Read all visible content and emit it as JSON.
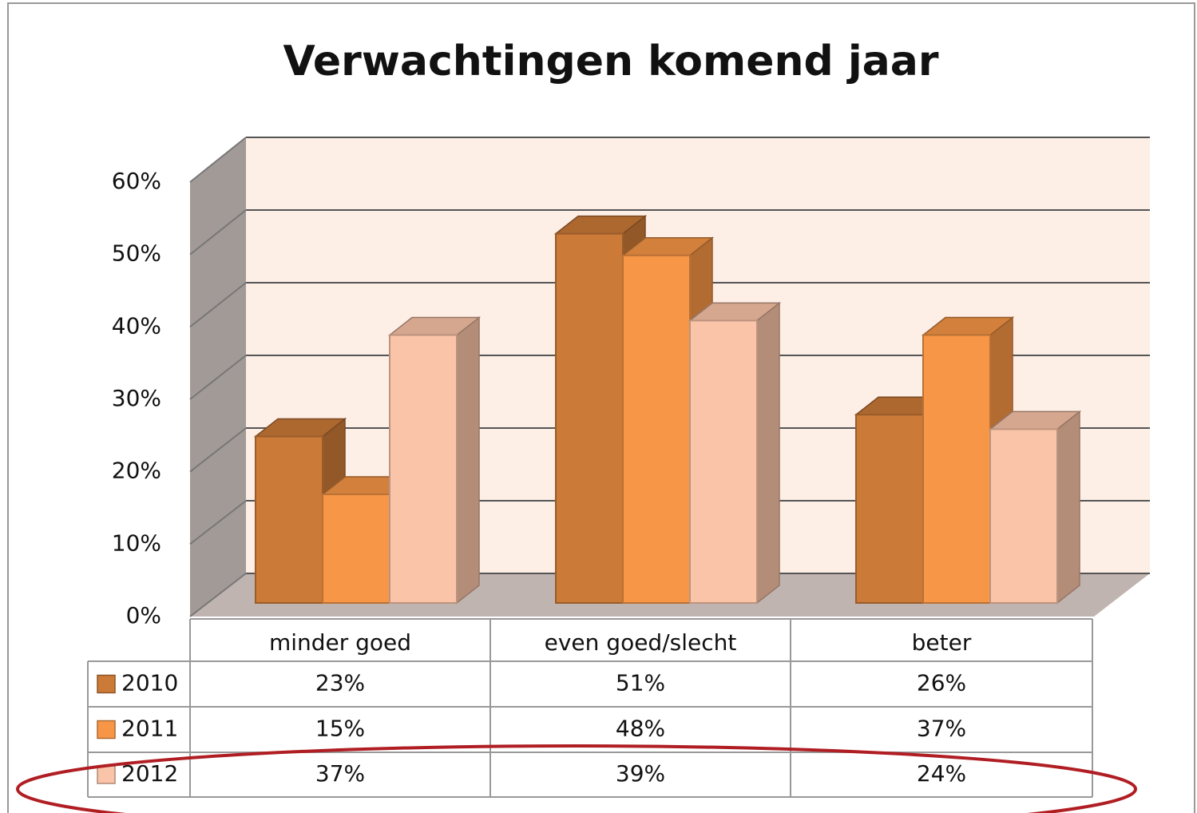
{
  "chart_data": {
    "type": "bar3d",
    "title": "Verwachtingen komend jaar",
    "categories": [
      "minder goed",
      "even goed/slecht",
      "beter"
    ],
    "series": [
      {
        "name": "2010",
        "color": "#cc7a38",
        "values": [
          23,
          51,
          26
        ],
        "value_labels": [
          "23%",
          "51%",
          "26%"
        ]
      },
      {
        "name": "2011",
        "color": "#f79646",
        "values": [
          15,
          48,
          37
        ],
        "value_labels": [
          "15%",
          "48%",
          "37%"
        ]
      },
      {
        "name": "2012",
        "color": "#fac4a8",
        "values": [
          37,
          39,
          24
        ],
        "value_labels": [
          "37%",
          "39%",
          "24%"
        ]
      }
    ],
    "ylim": [
      0,
      60
    ],
    "yticks": [
      {
        "value": 0,
        "label": "0%"
      },
      {
        "value": 10,
        "label": "10%"
      },
      {
        "value": 20,
        "label": "20%"
      },
      {
        "value": 30,
        "label": "30%"
      },
      {
        "value": 40,
        "label": "40%"
      },
      {
        "value": 50,
        "label": "50%"
      },
      {
        "value": 60,
        "label": "60%"
      }
    ],
    "grid": true
  }
}
